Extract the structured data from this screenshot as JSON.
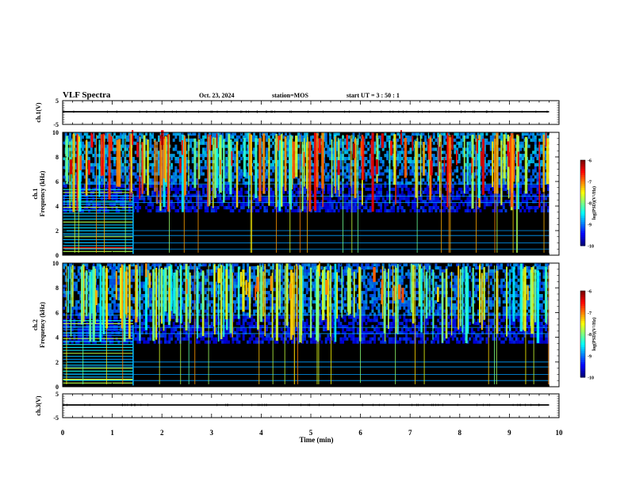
{
  "header": {
    "title": "VLF Spectra",
    "date": "Oct. 23, 2024",
    "station": "station=MOS",
    "start": "start  UT  =   3 : 50 : 1"
  },
  "chart_data": [
    {
      "type": "line",
      "name": "ch1-waveform",
      "ylabel": "ch.1(V)",
      "ylim": [
        -5,
        5
      ],
      "yticks": [
        "5",
        "-5"
      ],
      "xlim": [
        0,
        10
      ],
      "baseline_value": 0
    },
    {
      "type": "heatmap",
      "name": "ch1-spectrogram",
      "ylabel": "ch.1\nFrequency (kHz)",
      "ylim": [
        0,
        10
      ],
      "yticks": [
        "0",
        "2",
        "4",
        "6",
        "8",
        "10"
      ],
      "xlim": [
        0,
        10
      ],
      "data_end_min": 9.8,
      "colorbar": {
        "label": "log(PSD)(V²/Hz)",
        "range": [
          -10,
          -6
        ],
        "ticks": [
          "-6",
          "-7",
          "-8",
          "-9",
          "-10"
        ]
      }
    },
    {
      "type": "heatmap",
      "name": "ch2-spectrogram",
      "ylabel": "ch.2\nFrequency (kHz)",
      "ylim": [
        0,
        10
      ],
      "yticks": [
        "0",
        "2",
        "4",
        "6",
        "8",
        "10"
      ],
      "xlim": [
        0,
        10
      ],
      "data_end_min": 9.8,
      "colorbar": {
        "label": "log(PSD)(V²/Hz)",
        "range": [
          -10,
          -6
        ],
        "ticks": [
          "-6",
          "-7",
          "-8",
          "-9",
          "-10"
        ]
      }
    },
    {
      "type": "line",
      "name": "ch3-waveform",
      "ylabel": "ch.3(V)",
      "ylim": [
        -5,
        5
      ],
      "yticks": [
        "5",
        "-5"
      ],
      "xlim": [
        0,
        10
      ],
      "baseline_value": 0
    }
  ],
  "xaxis": {
    "label": "Time  (min)",
    "ticks": [
      "0",
      "1",
      "2",
      "3",
      "4",
      "5",
      "6",
      "7",
      "8",
      "9",
      "10"
    ]
  }
}
